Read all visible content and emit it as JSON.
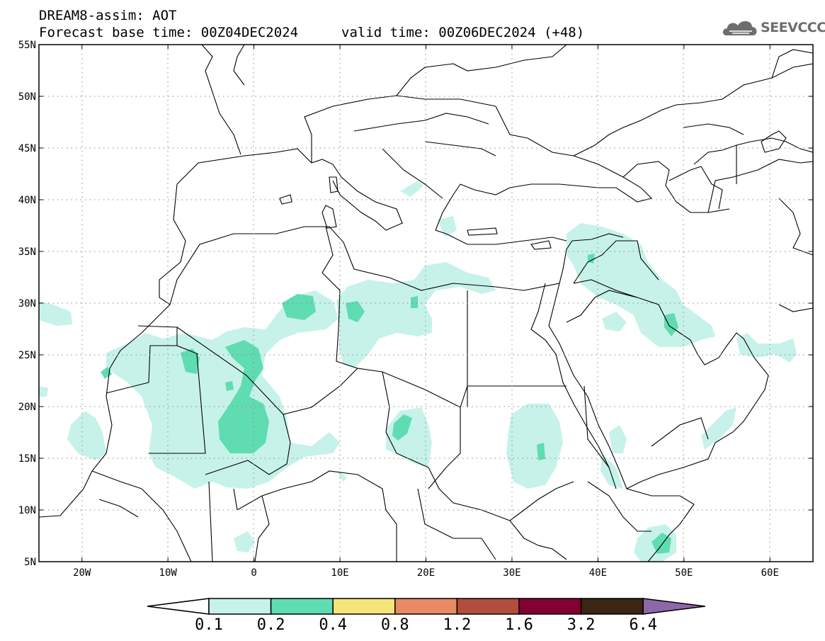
{
  "header": {
    "title": "DREAM8-assim: AOT",
    "base_time": "Forecast base time: 00Z04DEC2024",
    "valid_time": "valid time: 00Z06DEC2024 (+48)"
  },
  "logo": {
    "text": "SEEVCCC",
    "icon": "cloud-icon"
  },
  "map": {
    "lon_range": [
      -25,
      65
    ],
    "lat_range": [
      5,
      55
    ],
    "lat_ticks": [
      "5N",
      "10N",
      "15N",
      "20N",
      "25N",
      "30N",
      "35N",
      "40N",
      "45N",
      "50N",
      "55N"
    ],
    "lon_ticks": [
      "20W",
      "10W",
      "0",
      "10E",
      "20E",
      "30E",
      "40E",
      "50E",
      "60E"
    ],
    "grid": "dotted"
  },
  "colorbar": {
    "levels": [
      "0.1",
      "0.2",
      "0.4",
      "0.8",
      "1.2",
      "1.6",
      "3.2",
      "6.4"
    ],
    "colors": [
      "#c6f2ea",
      "#5fdcb1",
      "#f5e47a",
      "#e88a63",
      "#b24e3e",
      "#820032",
      "#3b2514",
      "#8e67a9"
    ]
  }
}
